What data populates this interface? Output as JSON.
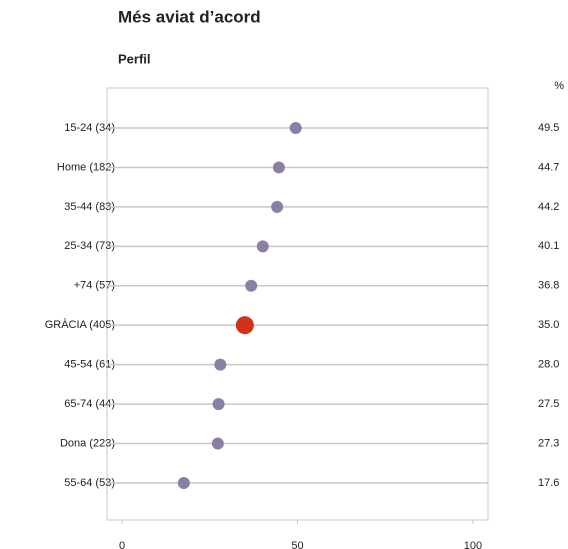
{
  "chart_data": {
    "type": "dot",
    "title": "Més aviat d’acord",
    "subtitle": "Perfil",
    "value_label_header": "%",
    "categories": [
      "15-24 (34)",
      "Home (182)",
      "35-44 (83)",
      "25-34 (73)",
      "+74 (57)",
      "GRÀCIA (405)",
      "45-54 (61)",
      "65-74 (44)",
      "Dona (223)",
      "55-64 (53)"
    ],
    "values": [
      49.5,
      44.7,
      44.2,
      40.1,
      36.8,
      35.0,
      28.0,
      27.5,
      27.3,
      17.6
    ],
    "value_labels": [
      "49.5",
      "44.7",
      "44.2",
      "40.1",
      "36.8",
      "35.0",
      "28.0",
      "27.5",
      "27.3",
      "17.6"
    ],
    "color": "#8b80a3",
    "colors": [
      "#8b80a3",
      "#8b80a3",
      "#8b80a3",
      "#8b80a3",
      "#8b80a3",
      "#d2321c",
      "#8b80a3",
      "#8b80a3",
      "#8b80a3",
      "#8b80a3"
    ],
    "xlim": [
      -4.3,
      104.3
    ],
    "xticks": [
      0,
      50,
      100
    ],
    "grid": true
  }
}
